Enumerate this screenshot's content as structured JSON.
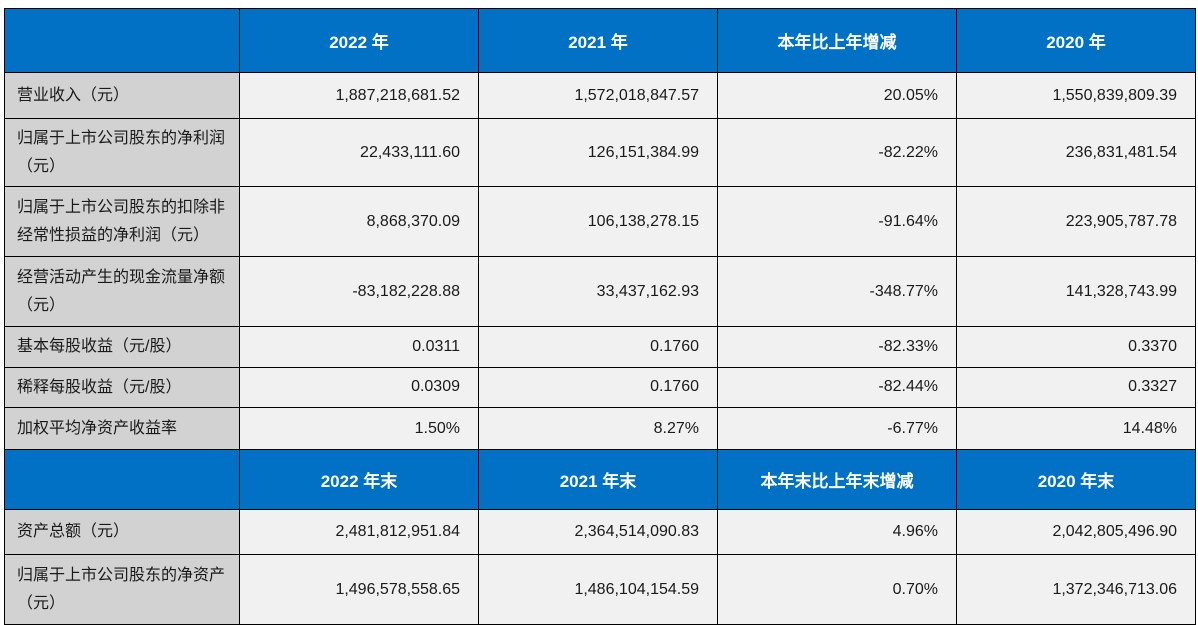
{
  "colors": {
    "header_background": "#0071C5",
    "header_text": "#ffffff",
    "label_background": "#d2d2d2",
    "value_background": "#f1f1f1",
    "border": "#000000"
  },
  "annual_table": {
    "headers": [
      "2022 年",
      "2021 年",
      "本年比上年增减",
      "2020 年"
    ],
    "rows": [
      {
        "label": "营业收入（元）",
        "values": [
          "1,887,218,681.52",
          "1,572,018,847.57",
          "20.05%",
          "1,550,839,809.39"
        ]
      },
      {
        "label": "归属于上市公司股东的净利润（元）",
        "values": [
          "22,433,111.60",
          "126,151,384.99",
          "-82.22%",
          "236,831,481.54"
        ]
      },
      {
        "label": "归属于上市公司股东的扣除非经常性损益的净利润（元）",
        "values": [
          "8,868,370.09",
          "106,138,278.15",
          "-91.64%",
          "223,905,787.78"
        ]
      },
      {
        "label": "经营活动产生的现金流量净额（元）",
        "values": [
          "-83,182,228.88",
          "33,437,162.93",
          "-348.77%",
          "141,328,743.99"
        ]
      },
      {
        "label": "基本每股收益（元/股）",
        "values": [
          "0.0311",
          "0.1760",
          "-82.33%",
          "0.3370"
        ]
      },
      {
        "label": "稀释每股收益（元/股）",
        "values": [
          "0.0309",
          "0.1760",
          "-82.44%",
          "0.3327"
        ]
      },
      {
        "label": "加权平均净资产收益率",
        "values": [
          "1.50%",
          "8.27%",
          "-6.77%",
          "14.48%"
        ]
      }
    ]
  },
  "yearend_table": {
    "headers": [
      "2022 年末",
      "2021 年末",
      "本年末比上年末增减",
      "2020 年末"
    ],
    "rows": [
      {
        "label": "资产总额（元）",
        "values": [
          "2,481,812,951.84",
          "2,364,514,090.83",
          "4.96%",
          "2,042,805,496.90"
        ]
      },
      {
        "label": "归属于上市公司股东的净资产（元）",
        "values": [
          "1,496,578,558.65",
          "1,486,104,154.59",
          "0.70%",
          "1,372,346,713.06"
        ]
      }
    ]
  }
}
